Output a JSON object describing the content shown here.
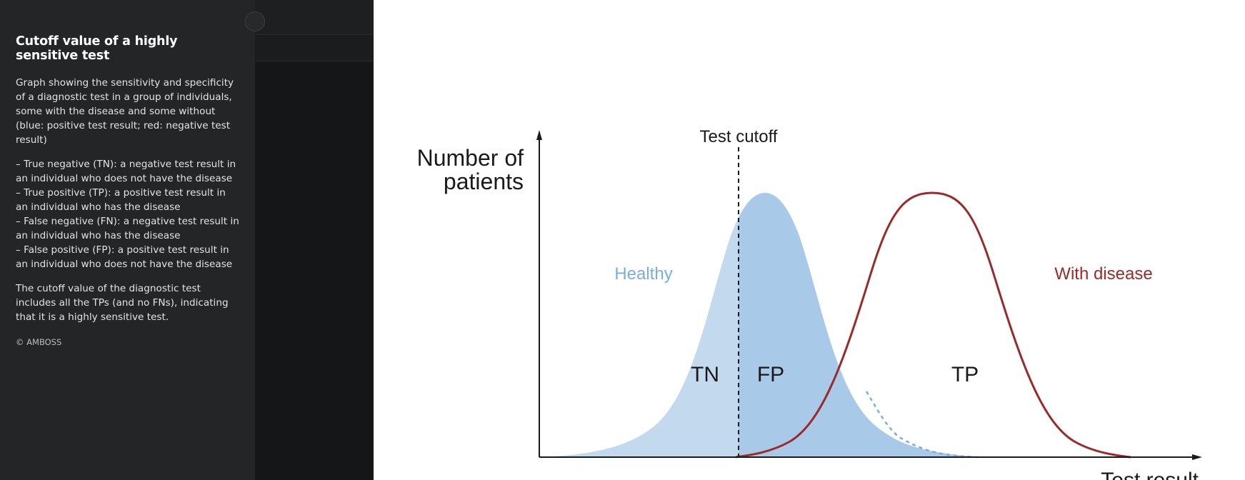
{
  "caption": {
    "title": "Cutoff value of a highly sensitive test",
    "intro": "Graph showing the sensitivity and specificity of a diagnostic test in a group of individuals, some with the disease and some without (blue: positive test result; red: negative test result)",
    "definitions": [
      "– True negative (TN): a negative test result in an individual who does not have the disease",
      "– True positive (TP): a positive test result in an individual who has the disease",
      "– False negative (FN): a negative test result in an individual who has the disease",
      "– False positive (FP): a positive test result in an individual who does not have the disease"
    ],
    "conclusion": "The cutoff value of the diagnostic test includes all the TPs (and no FNs), indicating that it is a highly sensitive test.",
    "copyright": "© AMBOSS"
  },
  "figure": {
    "y_axis_label_line1": "Number of",
    "y_axis_label_line2": "patients",
    "x_axis_label": "Test result",
    "cutoff_label": "Test cutoff",
    "healthy_label": "Healthy",
    "disease_label": "With disease",
    "tn_label": "TN",
    "fp_label": "FP",
    "tp_label": "TP",
    "colors": {
      "healthy_light": "#c3d9ee",
      "healthy_dark": "#a8c9e8",
      "healthy_text": "#7aaedb",
      "disease": "#9b2a2a",
      "axis": "#1a1a1a"
    }
  }
}
